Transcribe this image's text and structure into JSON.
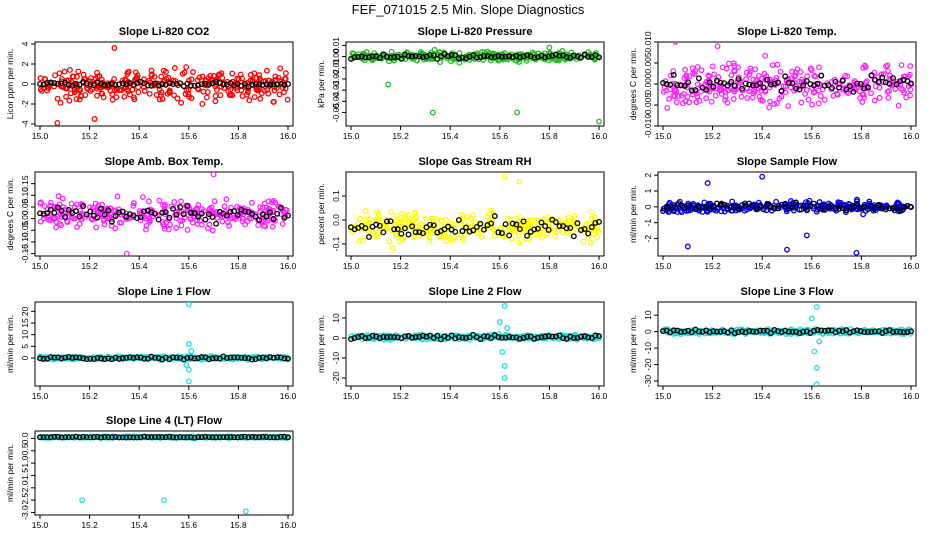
{
  "figure_title": "FEF_071015  2.5 Min. Slope Diagnostics",
  "colors": {
    "red": "#ff0000",
    "green": "#22bb22",
    "magenta": "#ff22ff",
    "yellow": "#ffff00",
    "blue": "#0000ee",
    "cyan": "#22dddd",
    "black": "#000000"
  },
  "chart_data": [
    {
      "type": "scatter",
      "title": "Slope Li-820 CO2",
      "ylabel": "Licor ppm per min.",
      "xlim": [
        15.0,
        16.0
      ],
      "xticks": [
        "15.0",
        "15.2",
        "15.4",
        "15.6",
        "15.8",
        "16.0"
      ],
      "ylim": [
        -4.2,
        4.2
      ],
      "yticks": [
        "-4",
        "-2",
        "0",
        "2",
        "4"
      ],
      "color_name": "red",
      "spread": 1.6,
      "center": 0.0,
      "ref_spread": 0.2,
      "outliers": [
        [
          15.3,
          3.6
        ],
        [
          15.07,
          -3.9
        ],
        [
          15.22,
          -3.5
        ]
      ]
    },
    {
      "type": "scatter",
      "title": "Slope Li-820 Pressure",
      "ylabel": "kPa per min.",
      "xlim": [
        15.0,
        16.0
      ],
      "xticks": [
        "15.0",
        "15.2",
        "15.4",
        "15.6",
        "15.8",
        "16.0"
      ],
      "ylim": [
        -0.062,
        0.013
      ],
      "yticks": [
        "-0.05",
        "-0.04",
        "-0.03",
        "-0.02",
        "-0.01",
        "0.00",
        "0.01"
      ],
      "color_name": "green",
      "spread": 0.004,
      "center": 0.0,
      "ref_spread": 0.002,
      "outliers": [
        [
          15.33,
          -0.05
        ],
        [
          15.67,
          -0.05
        ],
        [
          16.0,
          -0.058
        ],
        [
          15.15,
          -0.025
        ],
        [
          15.8,
          0.008
        ]
      ]
    },
    {
      "type": "scatter",
      "title": "Slope Li-820 Temp.",
      "ylabel": "degrees C per min.",
      "xlim": [
        15.0,
        16.0
      ],
      "xticks": [
        "15.0",
        "15.2",
        "15.4",
        "15.6",
        "15.8",
        "16.0"
      ],
      "ylim": [
        -0.01,
        0.01
      ],
      "yticks": [
        "-0.010",
        "-0.005",
        "0.000",
        "0.005",
        "0.010"
      ],
      "color_name": "magenta",
      "spread": 0.005,
      "center": 0.0,
      "ref_spread": 0.002,
      "outliers": [
        [
          15.05,
          0.01
        ],
        [
          15.22,
          0.009
        ]
      ]
    },
    {
      "type": "scatter",
      "title": "Slope Amb. Box Temp.",
      "ylabel": "degrees C per min.",
      "xlim": [
        15.0,
        16.0
      ],
      "xticks": [
        "15.0",
        "15.2",
        "15.4",
        "15.6",
        "15.8",
        "16.0"
      ],
      "ylim": [
        -0.16,
        0.2
      ],
      "yticks": [
        "-0.15",
        "-0.10",
        "-0.05",
        "0.00",
        "0.05",
        "0.10",
        "0.15"
      ],
      "color_name": "magenta",
      "spread": 0.06,
      "center": 0.02,
      "ref_spread": 0.03,
      "outliers": [
        [
          15.7,
          0.19
        ],
        [
          15.35,
          -0.15
        ]
      ]
    },
    {
      "type": "scatter",
      "title": "Slope Gas Stream RH",
      "ylabel": "percent per min.",
      "xlim": [
        15.0,
        16.0
      ],
      "xticks": [
        "15.0",
        "15.2",
        "15.4",
        "15.6",
        "15.8",
        "16.0"
      ],
      "ylim": [
        -0.15,
        0.2
      ],
      "yticks": [
        "-0.1",
        "0.0",
        "0.1"
      ],
      "color_name": "yellow",
      "spread": 0.06,
      "center": -0.03,
      "ref_spread": 0.04,
      "outliers": [
        [
          15.62,
          0.18
        ],
        [
          15.68,
          0.16
        ]
      ]
    },
    {
      "type": "scatter",
      "title": "Slope Sample Flow",
      "ylabel": "ml/min per min.",
      "xlim": [
        15.0,
        16.0
      ],
      "xticks": [
        "15.0",
        "15.2",
        "15.4",
        "15.6",
        "15.8",
        "16.0"
      ],
      "ylim": [
        -3.1,
        2.2
      ],
      "yticks": [
        "-2",
        "-1",
        "0",
        "1",
        "2"
      ],
      "color_name": "blue",
      "spread": 0.3,
      "center": 0.0,
      "ref_spread": 0.25,
      "outliers": [
        [
          15.4,
          1.9
        ],
        [
          15.1,
          -2.5
        ],
        [
          15.5,
          -2.7
        ],
        [
          15.78,
          -2.9
        ],
        [
          15.58,
          -1.8
        ],
        [
          15.18,
          1.5
        ]
      ]
    },
    {
      "type": "scatter",
      "title": "Slope Line 1 Flow",
      "ylabel": "ml/min per min.",
      "xlim": [
        15.0,
        16.0
      ],
      "xticks": [
        "15.0",
        "15.2",
        "15.4",
        "15.6",
        "15.8",
        "16.0"
      ],
      "ylim": [
        -12,
        24
      ],
      "yticks": [
        "0",
        "5",
        "10",
        "15",
        "20"
      ],
      "color_name": "cyan",
      "spread": 0.7,
      "center": 0.0,
      "ref_spread": 0.6,
      "outliers": [
        [
          15.6,
          23
        ],
        [
          15.6,
          -10
        ],
        [
          15.6,
          6
        ],
        [
          15.6,
          -5
        ],
        [
          15.61,
          3
        ],
        [
          15.59,
          -3
        ]
      ]
    },
    {
      "type": "scatter",
      "title": "Slope Line 2 Flow",
      "ylabel": "ml/min per min.",
      "xlim": [
        15.0,
        16.0
      ],
      "xticks": [
        "15.0",
        "15.2",
        "15.4",
        "15.6",
        "15.8",
        "16.0"
      ],
      "ylim": [
        -24,
        18
      ],
      "yticks": [
        "-20",
        "-10",
        "0",
        "10"
      ],
      "color_name": "cyan",
      "spread": 1.2,
      "center": 0.5,
      "ref_spread": 1.0,
      "outliers": [
        [
          15.62,
          16
        ],
        [
          15.62,
          -20
        ],
        [
          15.62,
          -14
        ],
        [
          15.6,
          8
        ],
        [
          15.61,
          -7
        ],
        [
          15.63,
          5
        ]
      ]
    },
    {
      "type": "scatter",
      "title": "Slope Line 3 Flow",
      "ylabel": "ml/min per min.",
      "xlim": [
        15.0,
        16.0
      ],
      "xticks": [
        "15.0",
        "15.2",
        "15.4",
        "15.6",
        "15.8",
        "16.0"
      ],
      "ylim": [
        -33,
        18
      ],
      "yticks": [
        "-30",
        "-20",
        "-10",
        "0",
        "10"
      ],
      "color_name": "cyan",
      "spread": 1.5,
      "center": 0.0,
      "ref_spread": 1.0,
      "outliers": [
        [
          15.62,
          15
        ],
        [
          15.62,
          -32
        ],
        [
          15.62,
          -22
        ],
        [
          15.6,
          8
        ],
        [
          15.61,
          -12
        ],
        [
          15.63,
          -6
        ]
      ]
    },
    {
      "type": "scatter",
      "title": "Slope Line 4 (LT) Flow",
      "ylabel": "ml/min per min.",
      "xlim": [
        15.0,
        16.0
      ],
      "xticks": [
        "15.0",
        "15.2",
        "15.4",
        "15.6",
        "15.8",
        "16.0"
      ],
      "ylim": [
        -3.1,
        0.3
      ],
      "yticks": [
        "-3.0",
        "-2.5",
        "-2.0",
        "-1.5",
        "-1.0",
        "-0.5",
        "0.0"
      ],
      "color_name": "cyan",
      "spread": 0.03,
      "center": 0.05,
      "ref_spread": 0.02,
      "outliers": [
        [
          15.17,
          -2.5
        ],
        [
          15.5,
          -2.5
        ],
        [
          15.83,
          -2.95
        ]
      ]
    }
  ]
}
